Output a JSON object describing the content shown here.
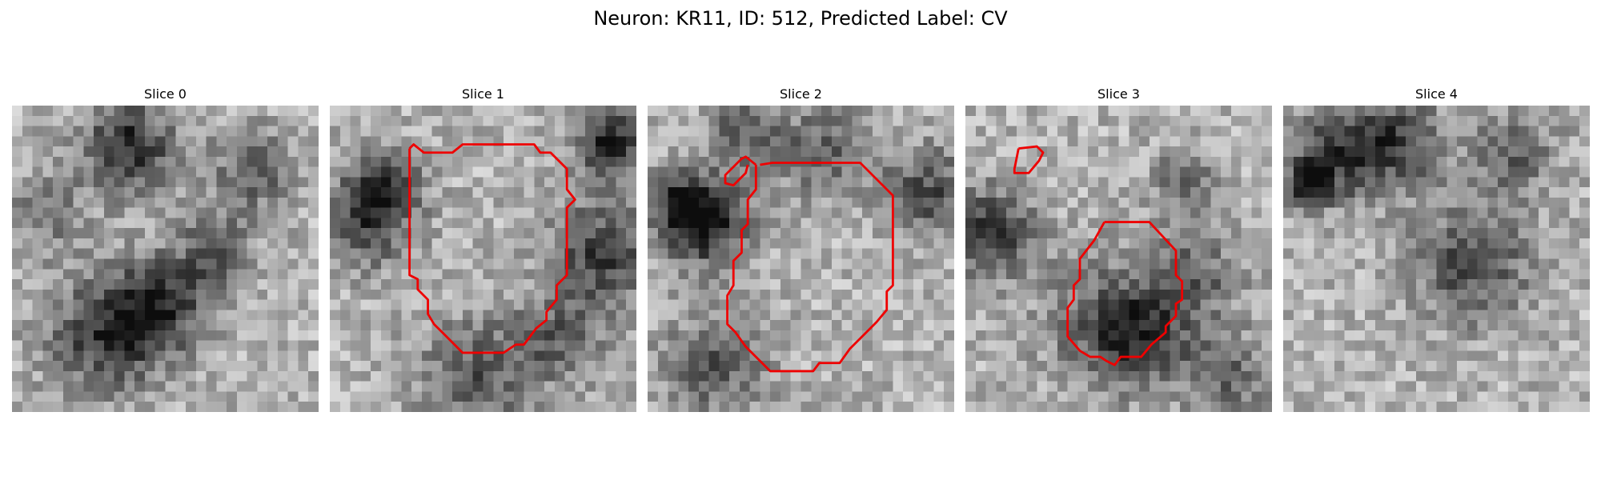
{
  "title": "Neuron: KR11, ID: 512, Predicted Label: CV",
  "contour_color": "#ee0000",
  "panels": [
    {
      "label": "Slice 0",
      "seed": 11
    },
    {
      "label": "Slice 1",
      "seed": 23
    },
    {
      "label": "Slice 2",
      "seed": 37
    },
    {
      "label": "Slice 3",
      "seed": 41
    },
    {
      "label": "Slice 4",
      "seed": 59
    }
  ]
}
